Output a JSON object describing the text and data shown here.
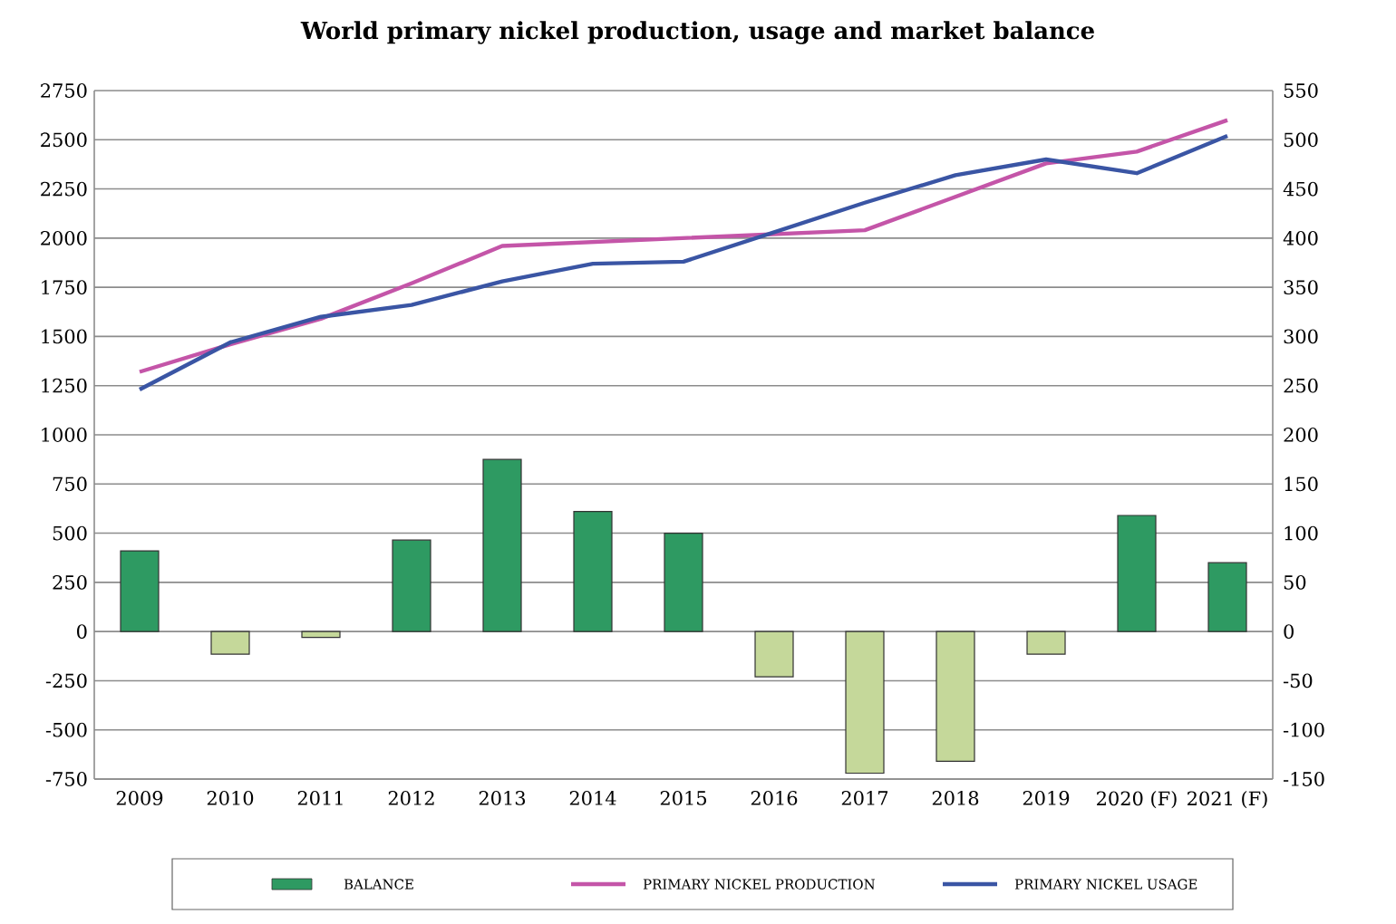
{
  "chart_data": {
    "type": "bar",
    "title": "World primary nickel production, usage and market balance",
    "categories": [
      "2009",
      "2010",
      "2011",
      "2012",
      "2013",
      "2014",
      "2015",
      "2016",
      "2017",
      "2018",
      "2019",
      "2020 (F)",
      "2021 (F)"
    ],
    "series": [
      {
        "name": "BALANCE",
        "axis": "y2",
        "color": "#2e9a62",
        "colors": [
          "#2e9a62",
          "#c5d89a",
          "#c5d89a",
          "#2e9a62",
          "#2e9a62",
          "#2e9a62",
          "#2e9a62",
          "#c5d89a",
          "#c5d89a",
          "#c5d89a",
          "#c5d89a",
          "#2e9a62",
          "#2e9a62"
        ],
        "values": [
          82,
          -23,
          -6,
          93,
          175,
          122,
          100,
          -46,
          -144,
          -132,
          -23,
          118,
          70
        ]
      },
      {
        "name": "PRIMARY NICKEL PRODUCTION",
        "type": "line",
        "color": "#c455a8",
        "values": [
          1320,
          1460,
          1590,
          1770,
          1960,
          1980,
          2000,
          2020,
          2040,
          2210,
          2380,
          2440,
          2600
        ]
      },
      {
        "name": "PRIMARY NICKEL USAGE",
        "type": "line",
        "color": "#3a55a4",
        "values": [
          1230,
          1470,
          1600,
          1660,
          1780,
          1870,
          1880,
          2030,
          2180,
          2320,
          2400,
          2330,
          2520
        ]
      }
    ],
    "ylim": [
      -750,
      2750
    ],
    "yticks": [
      -750,
      -500,
      -250,
      0,
      250,
      500,
      750,
      1000,
      1250,
      1500,
      1750,
      2000,
      2250,
      2500,
      2750
    ],
    "y2lim": [
      -150,
      550
    ],
    "y2ticks": [
      -150,
      -100,
      -50,
      0,
      50,
      100,
      150,
      200,
      250,
      300,
      350,
      400,
      450,
      500,
      550
    ],
    "grid": "y",
    "legend": "bottom",
    "line_style": "solid",
    "marker": "none"
  }
}
